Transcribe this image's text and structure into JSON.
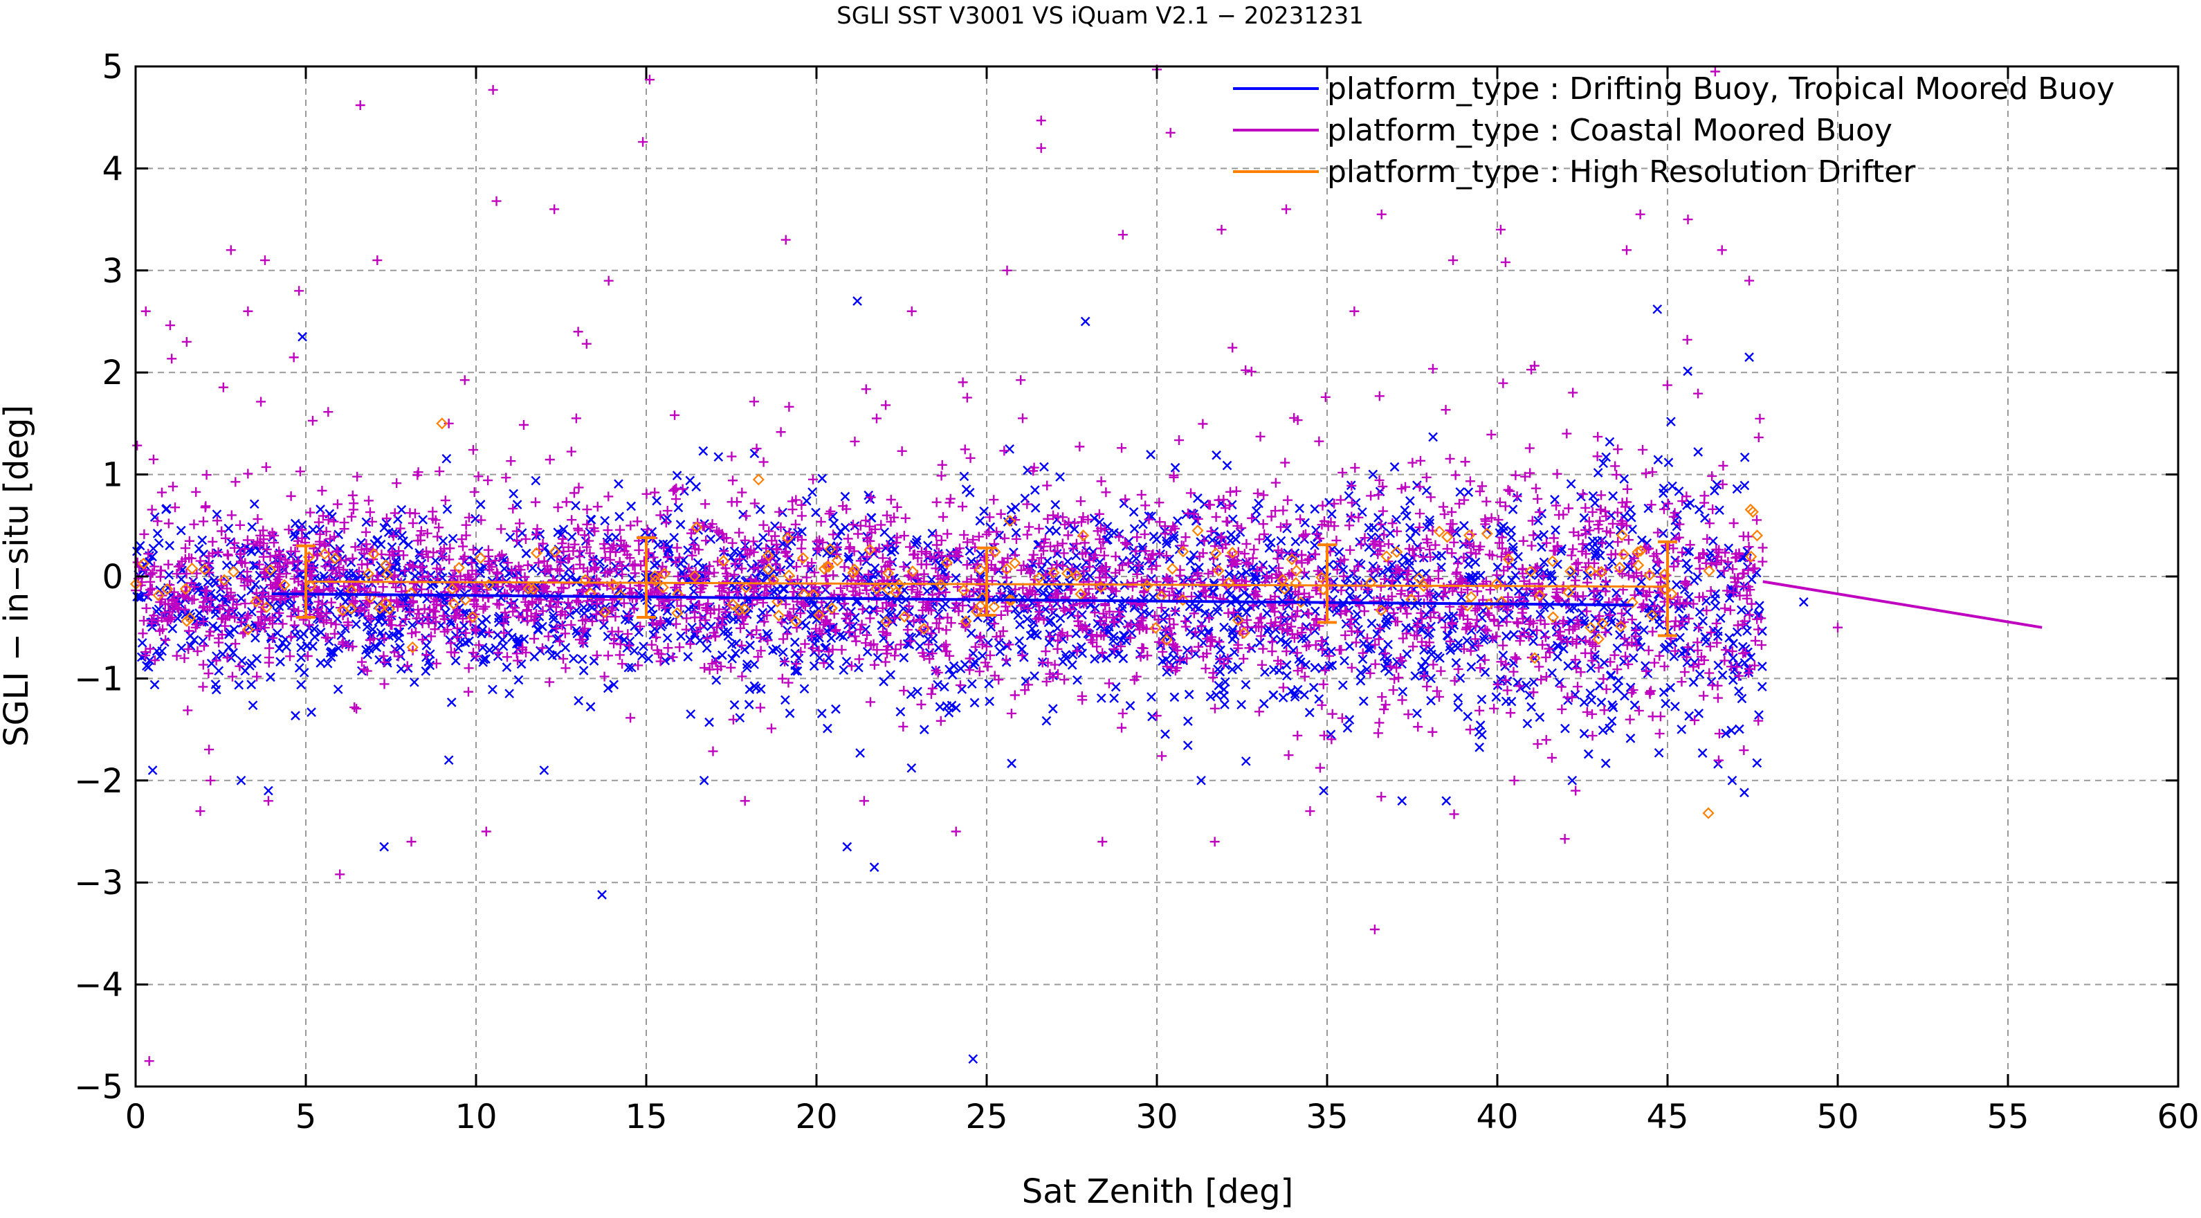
{
  "chart_data": {
    "type": "scatter",
    "title": "SGLI SST V3001 VS iQuam V2.1  − 20231231",
    "xlabel": "Sat Zenith [deg]",
    "ylabel": "SGLI − in−situ [deg]",
    "xlim": [
      0,
      60
    ],
    "ylim": [
      -5,
      5
    ],
    "x_ticks": [
      0,
      5,
      10,
      15,
      20,
      25,
      30,
      35,
      40,
      45,
      50,
      55,
      60
    ],
    "y_ticks": [
      -5,
      -4,
      -3,
      -2,
      -1,
      0,
      1,
      2,
      3,
      4,
      5
    ],
    "x_tick_labels": [
      "0",
      "5",
      "10",
      "15",
      "20",
      "25",
      "30",
      "35",
      "40",
      "45",
      "50",
      "55",
      "60"
    ],
    "y_tick_labels": [
      "−5",
      "−4",
      "−3",
      "−2",
      "−1",
      "0",
      "1",
      "2",
      "3",
      "4",
      "5"
    ],
    "grid": true,
    "legend_position": "top-right",
    "colors": {
      "drifting": "#0000ff",
      "coastal": "#c000c0",
      "hr_drifter": "#ff8000",
      "extra": "#000000"
    },
    "series": [
      {
        "name": "platform_type : Drifting Buoy, Tropical Moored Buoy",
        "color": "#0000ff",
        "marker": "x",
        "trend_line": {
          "x": [
            4,
            44
          ],
          "y": [
            -0.17,
            -0.28
          ]
        },
        "points_summary": {
          "x_range": [
            0,
            47.8
          ],
          "center_y": -0.2,
          "spread": 0.45
        }
      },
      {
        "name": "platform_type : Coastal Moored Buoy",
        "color": "#c000c0",
        "marker": "+",
        "trend_line": {
          "x": [
            47.8,
            56
          ],
          "y": [
            -0.05,
            -0.5
          ]
        },
        "points_summary": {
          "x_range": [
            0,
            47.8
          ],
          "center_y": -0.1,
          "spread": 0.45
        }
      },
      {
        "name": "platform_type : High Resolution Drifter",
        "color": "#ff8000",
        "marker": "diamond",
        "trend_line": {
          "x": [
            5,
            45
          ],
          "y": [
            -0.05,
            -0.1
          ]
        },
        "error_bars": [
          {
            "x": 5,
            "mean": -0.05,
            "low": -0.4,
            "high": 0.3
          },
          {
            "x": 15,
            "mean": -0.03,
            "low": -0.4,
            "high": 0.38
          },
          {
            "x": 25,
            "mean": -0.05,
            "low": -0.38,
            "high": 0.28
          },
          {
            "x": 35,
            "mean": -0.07,
            "low": -0.45,
            "high": 0.31
          },
          {
            "x": 45,
            "mean": -0.12,
            "low": -0.58,
            "high": 0.34
          }
        ]
      }
    ],
    "outliers": {
      "coastal": [
        [
          0.4,
          -4.75
        ],
        [
          6.6,
          4.62
        ],
        [
          10.5,
          4.77
        ],
        [
          10.6,
          3.68
        ],
        [
          15.1,
          4.87
        ],
        [
          14.9,
          4.26
        ],
        [
          2.8,
          3.2
        ],
        [
          3.8,
          3.1
        ],
        [
          7.1,
          3.1
        ],
        [
          17.9,
          -2.2
        ],
        [
          24.1,
          -2.5
        ],
        [
          28.4,
          -2.6
        ],
        [
          36.4,
          -3.46
        ],
        [
          26.6,
          4.47
        ],
        [
          26.6,
          4.2
        ],
        [
          30.0,
          4.97
        ],
        [
          30.4,
          4.35
        ],
        [
          46.4,
          4.95
        ],
        [
          46.6,
          3.2
        ],
        [
          45.6,
          3.5
        ],
        [
          1.9,
          -2.3
        ],
        [
          8.1,
          -2.6
        ],
        [
          10.3,
          -2.5
        ],
        [
          6.0,
          -2.92
        ],
        [
          44.2,
          3.55
        ],
        [
          36.6,
          3.55
        ],
        [
          40.1,
          3.4
        ],
        [
          33.8,
          3.6
        ],
        [
          29.0,
          3.35
        ],
        [
          31.9,
          3.4
        ],
        [
          21.4,
          -2.2
        ],
        [
          19.1,
          3.3
        ],
        [
          12.3,
          3.6
        ],
        [
          40.5,
          -2.0
        ],
        [
          42.3,
          -2.1
        ],
        [
          50.0,
          -0.5
        ],
        [
          0.3,
          2.6
        ],
        [
          1.5,
          2.3
        ],
        [
          3.3,
          2.6
        ],
        [
          4.8,
          2.8
        ],
        [
          13.0,
          2.4
        ],
        [
          22.8,
          2.6
        ],
        [
          25.6,
          3.0
        ],
        [
          35.8,
          2.6
        ],
        [
          38.7,
          3.1
        ],
        [
          43.8,
          3.2
        ],
        [
          47.4,
          2.9
        ],
        [
          9.2,
          1.5
        ],
        [
          2.2,
          -2.0
        ],
        [
          3.9,
          -2.2
        ],
        [
          31.7,
          -2.6
        ],
        [
          34.5,
          -2.3
        ]
      ],
      "drifting": [
        [
          13.7,
          -3.12
        ],
        [
          24.6,
          -4.73
        ],
        [
          20.9,
          -2.65
        ],
        [
          21.7,
          -2.85
        ],
        [
          7.3,
          -2.65
        ],
        [
          3.9,
          -2.1
        ],
        [
          0.5,
          -1.9
        ],
        [
          3.1,
          -2.0
        ],
        [
          9.2,
          -1.8
        ],
        [
          44.7,
          2.62
        ],
        [
          21.2,
          2.7
        ],
        [
          4.9,
          2.35
        ],
        [
          47.4,
          2.15
        ],
        [
          49.0,
          -0.25
        ],
        [
          37.2,
          -2.2
        ],
        [
          38.5,
          -2.2
        ],
        [
          42.2,
          -2.0
        ],
        [
          46.9,
          -2.0
        ],
        [
          27.9,
          2.5
        ],
        [
          12.0,
          -1.9
        ],
        [
          16.7,
          -2.0
        ],
        [
          34.9,
          -2.1
        ],
        [
          31.3,
          -2.0
        ]
      ],
      "hr_drifter": [
        [
          9.0,
          1.5
        ],
        [
          46.2,
          -2.32
        ],
        [
          18.3,
          0.95
        ],
        [
          31.2,
          0.45
        ],
        [
          39.7,
          0.42
        ],
        [
          41.1,
          -0.8
        ]
      ]
    }
  }
}
